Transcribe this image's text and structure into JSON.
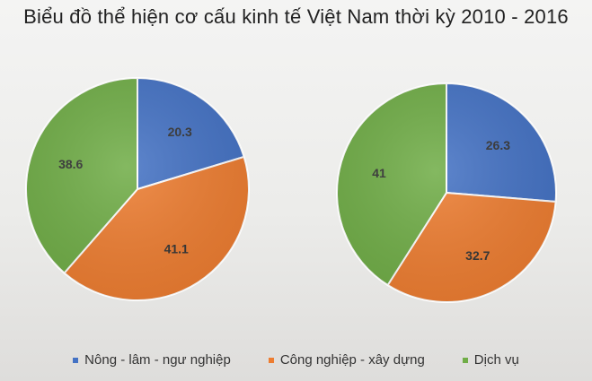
{
  "chart_data": {
    "type": "pie",
    "title": "Biểu đồ thể hiện cơ cấu kinh tế Việt Nam thời kỳ 2010 - 2016",
    "categories": [
      "Nông - lâm - ngư nghiệp",
      "Công nghiệp - xây dựng",
      "Dịch vụ"
    ],
    "colors": [
      "#4472c4",
      "#ed7d31",
      "#70ad47"
    ],
    "legend_position": "bottom",
    "pies": [
      {
        "values": [
          20.3,
          41.1,
          38.6
        ],
        "labels": [
          "20.3",
          "41.1",
          "38.6"
        ]
      },
      {
        "values": [
          26.3,
          32.7,
          41
        ],
        "labels": [
          "26.3",
          "32.7",
          "41"
        ]
      }
    ]
  }
}
